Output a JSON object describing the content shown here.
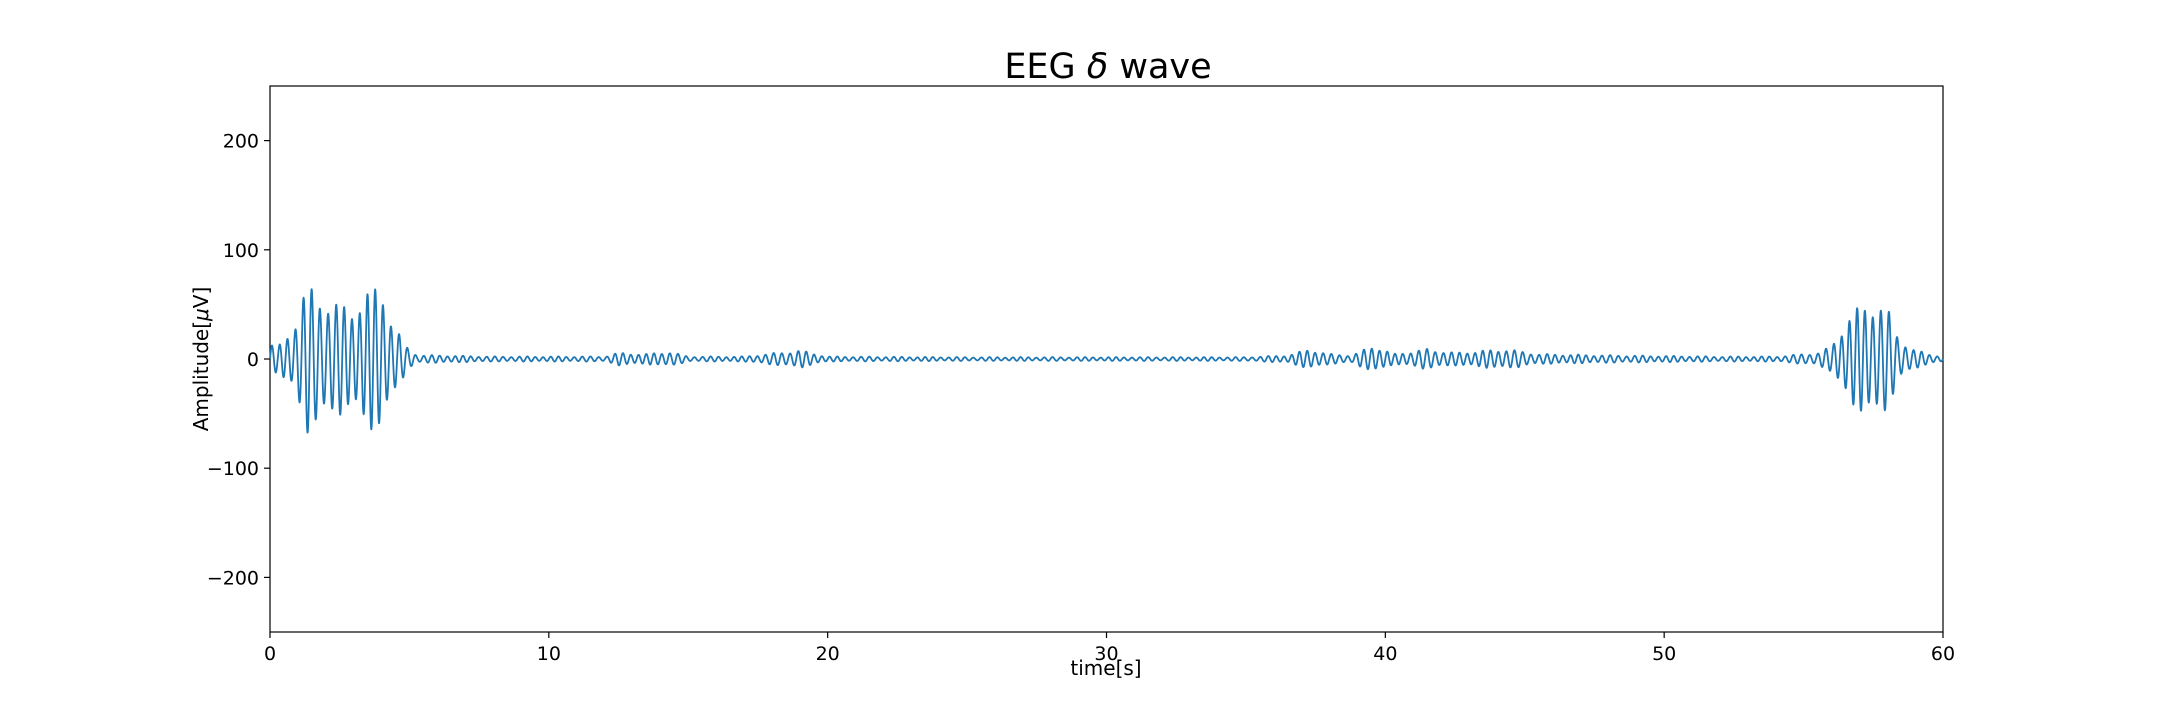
{
  "chart_data": {
    "type": "line",
    "title_prefix": "EEG ",
    "title_symbol": "δ",
    "title_suffix": " wave",
    "xlabel": "time[s]",
    "ylabel_prefix": "Amplitude[",
    "ylabel_symbol": "μ",
    "ylabel_suffix": "V]",
    "xlim": [
      0,
      60
    ],
    "ylim": [
      -250,
      250
    ],
    "x_ticks": [
      0,
      10,
      20,
      30,
      40,
      50,
      60
    ],
    "x_tick_labels": [
      "0",
      "10",
      "20",
      "30",
      "40",
      "50",
      "60"
    ],
    "y_ticks": [
      -200,
      -100,
      0,
      100,
      200
    ],
    "y_tick_labels": [
      "−200",
      "−100",
      "0",
      "100",
      "200"
    ],
    "grid": false,
    "series": [
      {
        "color": "#1f77b4",
        "carrier_frequency_hz": 3.5,
        "envelope": {
          "x": [
            0,
            0.3,
            0.8,
            1.3,
            1.8,
            2.3,
            2.9,
            3.4,
            4.0,
            4.4,
            4.9,
            5.3,
            6.0,
            8.0,
            10.0,
            12.0,
            12.5,
            13.5,
            14.3,
            15.0,
            17.0,
            19.0,
            20.0,
            25.0,
            30.0,
            35.0,
            36.5,
            37.3,
            38.0,
            38.8,
            39.6,
            40.3,
            41.5,
            42.5,
            44.3,
            45.5,
            48.0,
            52.0,
            54.0,
            55.5,
            56.0,
            56.6,
            57.1,
            57.6,
            58.0,
            58.4,
            58.9,
            59.5,
            60.0
          ],
          "amplitude": [
            12,
            10,
            25,
            58,
            52,
            44,
            42,
            50,
            62,
            28,
            10,
            3,
            3,
            2,
            2,
            2,
            5,
            4,
            6,
            2,
            2,
            7,
            2,
            1.5,
            1.5,
            1.5,
            3,
            8,
            4,
            3,
            11,
            4,
            8,
            5,
            8,
            4,
            3,
            2,
            2,
            5,
            10,
            35,
            42,
            48,
            40,
            18,
            8,
            4,
            2
          ]
        }
      }
    ]
  }
}
